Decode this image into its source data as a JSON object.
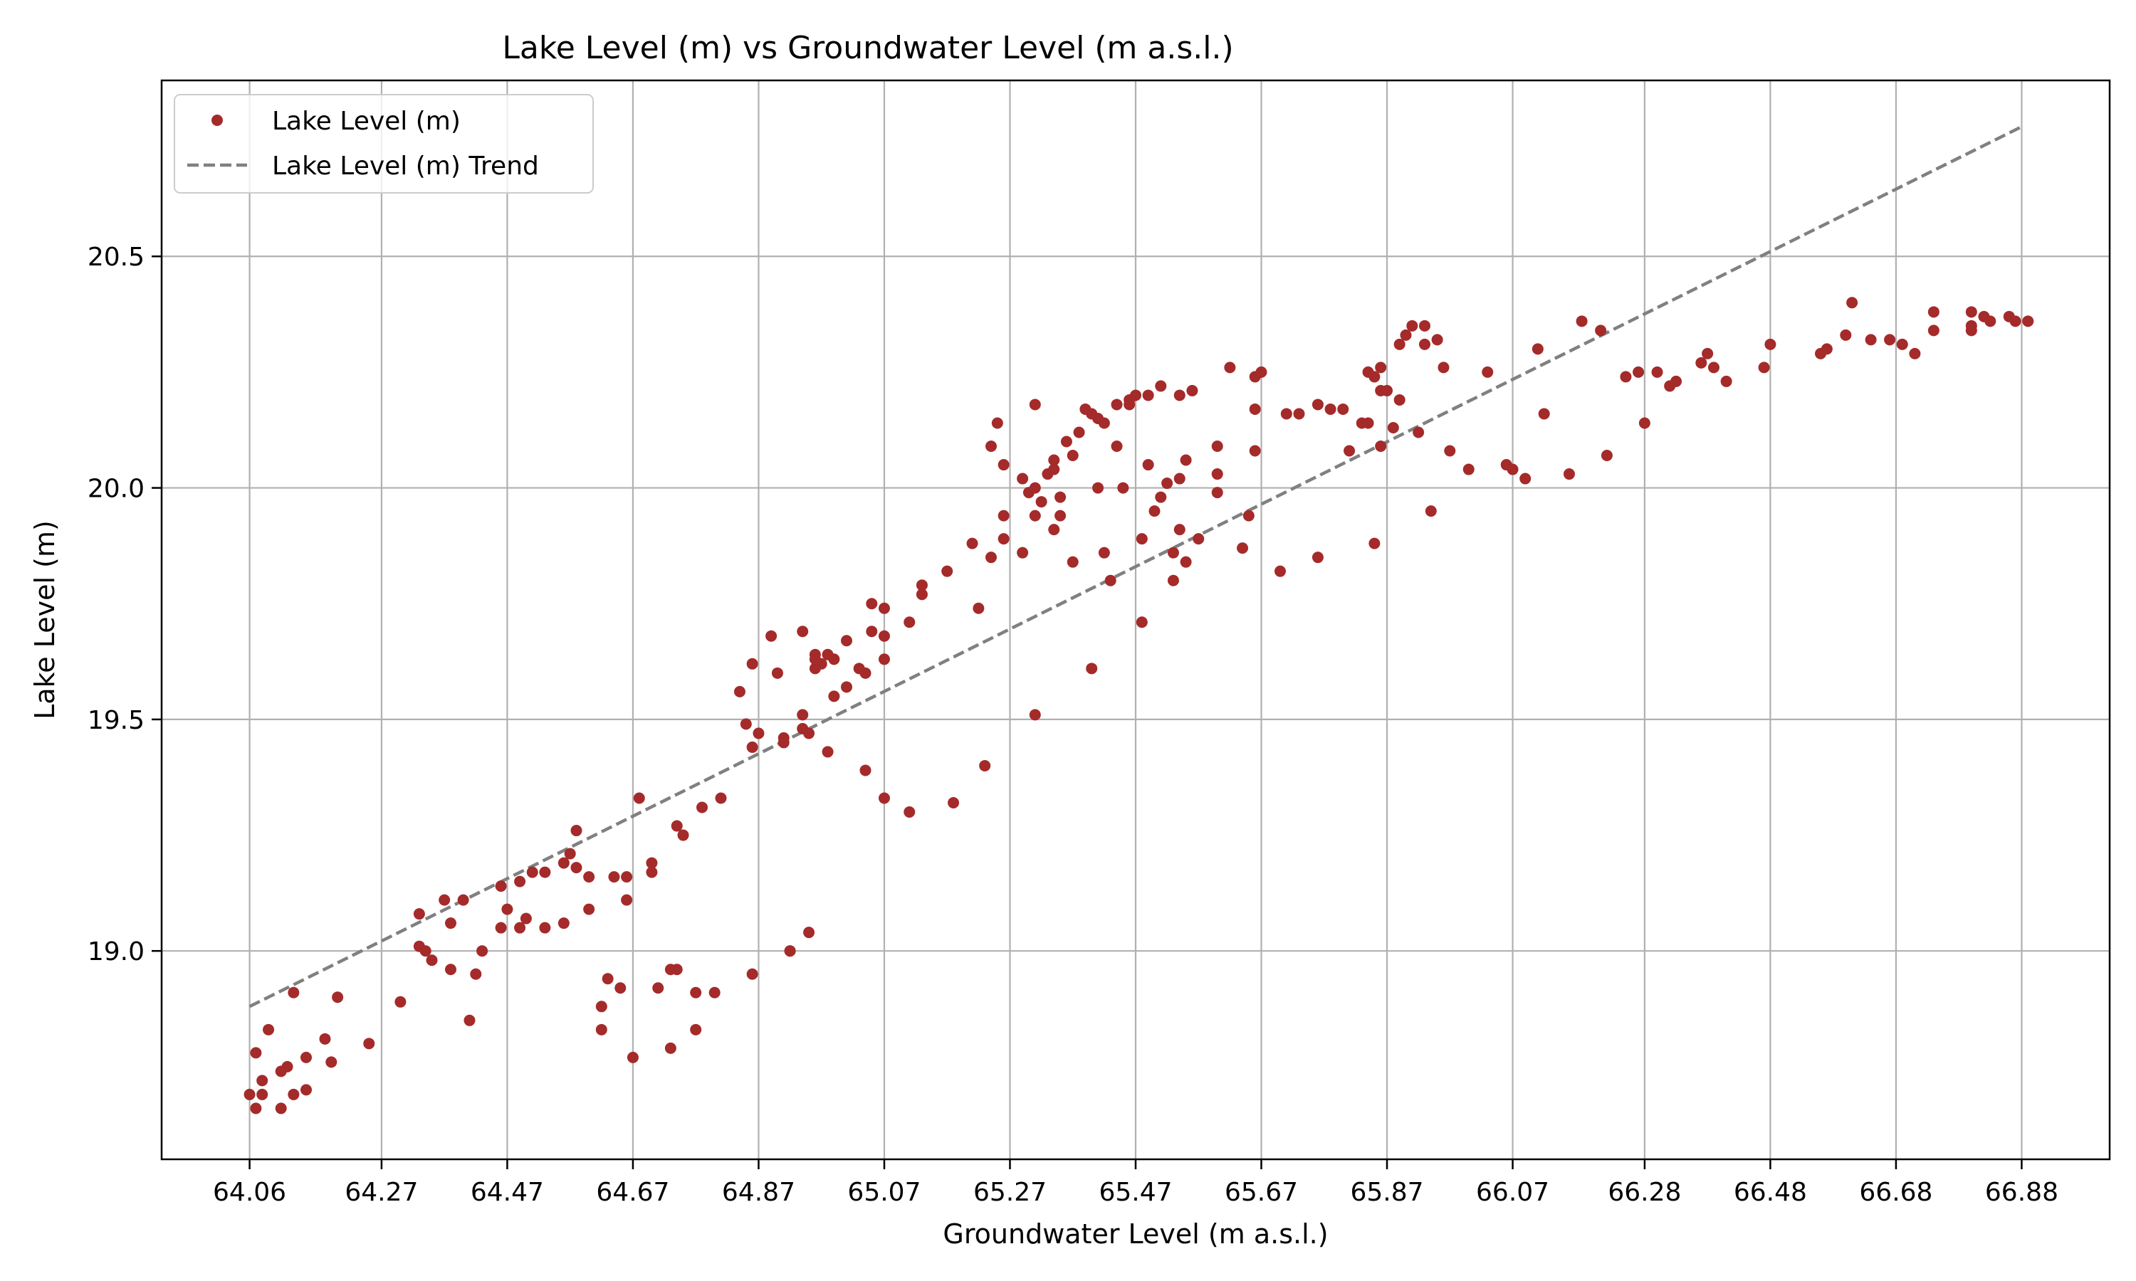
{
  "chart_data": {
    "type": "scatter",
    "title": "Lake Level (m) vs Groundwater Level (m a.s.l.)",
    "xlabel": "Groundwater Level (m a.s.l.)",
    "ylabel": "Lake Level (m)",
    "x_ticks": [
      "64.06",
      "64.27",
      "64.47",
      "64.67",
      "64.87",
      "65.07",
      "65.27",
      "65.47",
      "65.67",
      "65.87",
      "66.07",
      "66.28",
      "66.48",
      "66.68",
      "66.88"
    ],
    "y_ticks": [
      "19.0",
      "19.5",
      "20.0",
      "20.5"
    ],
    "xlim": [
      63.92,
      67.02
    ],
    "ylim": [
      18.55,
      20.88
    ],
    "grid": true,
    "legend_position": "upper-left",
    "colors": {
      "points": "#a52a2a",
      "trend": "#808080"
    },
    "series": [
      {
        "name": "Lake Level (m)",
        "kind": "scatter",
        "points": [
          [
            64.06,
            18.69
          ],
          [
            64.07,
            18.66
          ],
          [
            64.07,
            18.78
          ],
          [
            64.08,
            18.72
          ],
          [
            64.08,
            18.69
          ],
          [
            64.09,
            18.83
          ],
          [
            64.11,
            18.66
          ],
          [
            64.11,
            18.74
          ],
          [
            64.12,
            18.75
          ],
          [
            64.13,
            18.69
          ],
          [
            64.13,
            18.91
          ],
          [
            64.15,
            18.77
          ],
          [
            64.15,
            18.7
          ],
          [
            64.18,
            18.81
          ],
          [
            64.19,
            18.76
          ],
          [
            64.2,
            18.9
          ],
          [
            64.25,
            18.8
          ],
          [
            64.3,
            18.89
          ],
          [
            64.33,
            19.08
          ],
          [
            64.33,
            19.01
          ],
          [
            64.34,
            19.0
          ],
          [
            64.35,
            18.98
          ],
          [
            64.37,
            19.11
          ],
          [
            64.38,
            18.96
          ],
          [
            64.38,
            19.06
          ],
          [
            64.4,
            19.11
          ],
          [
            64.41,
            18.85
          ],
          [
            64.42,
            18.95
          ],
          [
            64.43,
            19.0
          ],
          [
            64.46,
            19.05
          ],
          [
            64.46,
            19.14
          ],
          [
            64.47,
            19.09
          ],
          [
            64.49,
            19.05
          ],
          [
            64.5,
            19.07
          ],
          [
            64.49,
            19.15
          ],
          [
            64.51,
            19.17
          ],
          [
            64.53,
            19.17
          ],
          [
            64.53,
            19.05
          ],
          [
            64.56,
            19.06
          ],
          [
            64.56,
            19.19
          ],
          [
            64.57,
            19.21
          ],
          [
            64.58,
            19.26
          ],
          [
            64.58,
            19.18
          ],
          [
            64.6,
            19.09
          ],
          [
            64.6,
            19.16
          ],
          [
            64.62,
            18.83
          ],
          [
            64.62,
            18.88
          ],
          [
            64.63,
            18.94
          ],
          [
            64.64,
            19.16
          ],
          [
            64.65,
            18.92
          ],
          [
            64.66,
            19.11
          ],
          [
            64.66,
            19.16
          ],
          [
            64.67,
            18.77
          ],
          [
            64.68,
            19.33
          ],
          [
            64.7,
            19.19
          ],
          [
            64.7,
            19.17
          ],
          [
            64.71,
            18.92
          ],
          [
            64.73,
            18.79
          ],
          [
            64.73,
            18.96
          ],
          [
            64.74,
            18.96
          ],
          [
            64.74,
            19.27
          ],
          [
            64.75,
            19.25
          ],
          [
            64.77,
            18.83
          ],
          [
            64.77,
            18.91
          ],
          [
            64.78,
            19.31
          ],
          [
            64.8,
            18.91
          ],
          [
            64.81,
            19.33
          ],
          [
            64.84,
            19.56
          ],
          [
            64.85,
            19.49
          ],
          [
            64.86,
            19.62
          ],
          [
            64.86,
            18.95
          ],
          [
            64.86,
            19.44
          ],
          [
            64.87,
            19.47
          ],
          [
            64.89,
            19.68
          ],
          [
            64.9,
            19.6
          ],
          [
            64.91,
            19.46
          ],
          [
            64.91,
            19.45
          ],
          [
            64.92,
            19.0
          ],
          [
            64.92,
            19.0
          ],
          [
            64.94,
            19.69
          ],
          [
            64.94,
            19.51
          ],
          [
            64.94,
            19.48
          ],
          [
            64.95,
            19.04
          ],
          [
            64.95,
            19.47
          ],
          [
            64.96,
            19.64
          ],
          [
            64.96,
            19.61
          ],
          [
            64.96,
            19.63
          ],
          [
            64.97,
            19.62
          ],
          [
            64.98,
            19.64
          ],
          [
            64.98,
            19.43
          ],
          [
            64.99,
            19.63
          ],
          [
            64.99,
            19.55
          ],
          [
            65.01,
            19.67
          ],
          [
            65.01,
            19.57
          ],
          [
            65.03,
            19.61
          ],
          [
            65.04,
            19.39
          ],
          [
            65.04,
            19.6
          ],
          [
            65.05,
            19.69
          ],
          [
            65.05,
            19.75
          ],
          [
            65.07,
            19.74
          ],
          [
            65.07,
            19.68
          ],
          [
            65.07,
            19.63
          ],
          [
            65.07,
            19.33
          ],
          [
            65.11,
            19.3
          ],
          [
            65.11,
            19.71
          ],
          [
            65.13,
            19.77
          ],
          [
            65.13,
            19.79
          ],
          [
            65.17,
            19.82
          ],
          [
            65.18,
            19.32
          ],
          [
            65.21,
            19.88
          ],
          [
            65.22,
            19.74
          ],
          [
            65.23,
            19.4
          ],
          [
            65.24,
            19.85
          ],
          [
            65.24,
            20.09
          ],
          [
            65.25,
            20.14
          ],
          [
            65.26,
            19.89
          ],
          [
            65.26,
            19.94
          ],
          [
            65.26,
            20.05
          ],
          [
            65.29,
            20.02
          ],
          [
            65.29,
            19.86
          ],
          [
            65.3,
            19.99
          ],
          [
            65.31,
            20.0
          ],
          [
            65.31,
            19.51
          ],
          [
            65.31,
            19.94
          ],
          [
            65.31,
            20.18
          ],
          [
            65.32,
            19.97
          ],
          [
            65.33,
            20.03
          ],
          [
            65.34,
            19.91
          ],
          [
            65.34,
            20.06
          ],
          [
            65.34,
            20.04
          ],
          [
            65.35,
            19.94
          ],
          [
            65.35,
            19.98
          ],
          [
            65.36,
            20.1
          ],
          [
            65.37,
            19.84
          ],
          [
            65.37,
            20.07
          ],
          [
            65.38,
            20.12
          ],
          [
            65.39,
            20.17
          ],
          [
            65.4,
            19.61
          ],
          [
            65.4,
            20.16
          ],
          [
            65.41,
            20.0
          ],
          [
            65.41,
            20.15
          ],
          [
            65.42,
            19.86
          ],
          [
            65.42,
            20.14
          ],
          [
            65.43,
            19.8
          ],
          [
            65.44,
            20.09
          ],
          [
            65.44,
            20.18
          ],
          [
            65.45,
            20.0
          ],
          [
            65.46,
            20.18
          ],
          [
            65.46,
            20.19
          ],
          [
            65.47,
            20.2
          ],
          [
            65.48,
            19.71
          ],
          [
            65.48,
            19.89
          ],
          [
            65.49,
            20.05
          ],
          [
            65.49,
            20.2
          ],
          [
            65.5,
            19.95
          ],
          [
            65.51,
            20.22
          ],
          [
            65.51,
            19.98
          ],
          [
            65.52,
            20.01
          ],
          [
            65.53,
            19.86
          ],
          [
            65.53,
            19.8
          ],
          [
            65.54,
            20.02
          ],
          [
            65.54,
            19.91
          ],
          [
            65.54,
            20.2
          ],
          [
            65.55,
            19.84
          ],
          [
            65.55,
            20.06
          ],
          [
            65.56,
            20.21
          ],
          [
            65.57,
            19.89
          ],
          [
            65.6,
            20.09
          ],
          [
            65.6,
            19.99
          ],
          [
            65.6,
            20.03
          ],
          [
            65.62,
            20.26
          ],
          [
            65.64,
            19.87
          ],
          [
            65.65,
            19.94
          ],
          [
            65.66,
            20.08
          ],
          [
            65.66,
            20.17
          ],
          [
            65.66,
            20.24
          ],
          [
            65.67,
            20.25
          ],
          [
            65.7,
            19.82
          ],
          [
            65.71,
            20.16
          ],
          [
            65.73,
            20.16
          ],
          [
            65.76,
            20.18
          ],
          [
            65.76,
            19.85
          ],
          [
            65.78,
            20.17
          ],
          [
            65.8,
            20.17
          ],
          [
            65.81,
            20.08
          ],
          [
            65.83,
            20.14
          ],
          [
            65.84,
            20.25
          ],
          [
            65.84,
            20.14
          ],
          [
            65.85,
            19.88
          ],
          [
            65.85,
            20.24
          ],
          [
            65.86,
            20.21
          ],
          [
            65.86,
            20.09
          ],
          [
            65.86,
            20.26
          ],
          [
            65.87,
            20.21
          ],
          [
            65.88,
            20.13
          ],
          [
            65.89,
            20.19
          ],
          [
            65.89,
            20.31
          ],
          [
            65.9,
            20.33
          ],
          [
            65.91,
            20.35
          ],
          [
            65.92,
            20.12
          ],
          [
            65.93,
            20.31
          ],
          [
            65.93,
            20.35
          ],
          [
            65.94,
            19.95
          ],
          [
            65.95,
            20.32
          ],
          [
            65.96,
            20.26
          ],
          [
            65.97,
            20.08
          ],
          [
            66.0,
            20.04
          ],
          [
            66.03,
            20.25
          ],
          [
            66.06,
            20.05
          ],
          [
            66.07,
            20.04
          ],
          [
            66.09,
            20.02
          ],
          [
            66.11,
            20.3
          ],
          [
            66.12,
            20.16
          ],
          [
            66.16,
            20.03
          ],
          [
            66.18,
            20.36
          ],
          [
            66.21,
            20.34
          ],
          [
            66.22,
            20.07
          ],
          [
            66.25,
            20.24
          ],
          [
            66.27,
            20.25
          ],
          [
            66.28,
            20.14
          ],
          [
            66.3,
            20.25
          ],
          [
            66.32,
            20.22
          ],
          [
            66.33,
            20.23
          ],
          [
            66.37,
            20.27
          ],
          [
            66.38,
            20.29
          ],
          [
            66.39,
            20.26
          ],
          [
            66.41,
            20.23
          ],
          [
            66.47,
            20.26
          ],
          [
            66.48,
            20.31
          ],
          [
            66.56,
            20.29
          ],
          [
            66.57,
            20.3
          ],
          [
            66.6,
            20.33
          ],
          [
            66.61,
            20.4
          ],
          [
            66.64,
            20.32
          ],
          [
            66.67,
            20.32
          ],
          [
            66.69,
            20.31
          ],
          [
            66.71,
            20.29
          ],
          [
            66.74,
            20.34
          ],
          [
            66.74,
            20.38
          ],
          [
            66.8,
            20.35
          ],
          [
            66.8,
            20.34
          ],
          [
            66.8,
            20.38
          ],
          [
            66.82,
            20.37
          ],
          [
            66.83,
            20.36
          ],
          [
            66.86,
            20.37
          ],
          [
            66.87,
            20.36
          ],
          [
            66.89,
            20.36
          ]
        ]
      },
      {
        "name": "Lake Level (m) Trend",
        "kind": "line",
        "x": [
          64.06,
          66.88
        ],
        "y": [
          18.88,
          20.78
        ]
      }
    ]
  }
}
